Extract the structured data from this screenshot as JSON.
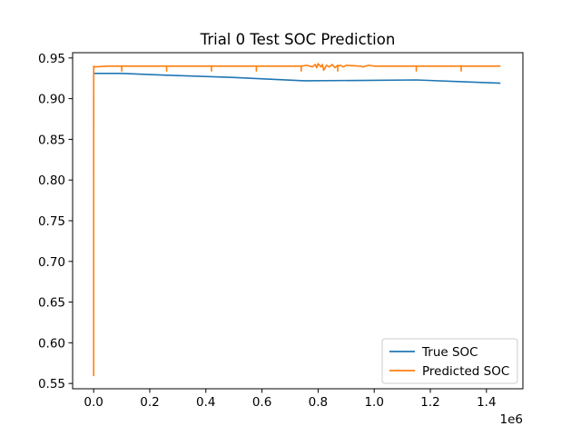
{
  "chart_data": {
    "type": "line",
    "title": "Trial 0 Test SOC Prediction",
    "xlabel": "",
    "ylabel": "",
    "x_offset_label": "1e6",
    "xlim": [
      -75000,
      1530000
    ],
    "ylim": [
      0.5435,
      0.9565
    ],
    "x_ticks": [
      0,
      200000,
      400000,
      600000,
      800000,
      1000000,
      1200000,
      1400000
    ],
    "x_tick_labels": [
      "0.0",
      "0.2",
      "0.4",
      "0.6",
      "0.8",
      "1.0",
      "1.2",
      "1.4"
    ],
    "y_ticks": [
      0.55,
      0.6,
      0.65,
      0.7,
      0.75,
      0.8,
      0.85,
      0.9,
      0.95
    ],
    "y_tick_labels": [
      "0.55",
      "0.60",
      "0.65",
      "0.70",
      "0.75",
      "0.80",
      "0.85",
      "0.90",
      "0.95"
    ],
    "grid": false,
    "legend_position": "lower-right",
    "series": [
      {
        "name": "True SOC",
        "color": "#1f77b4",
        "x": [
          0,
          100000,
          250000,
          500000,
          750000,
          1000000,
          1150000,
          1300000,
          1450000
        ],
        "y": [
          0.931,
          0.931,
          0.929,
          0.926,
          0.922,
          0.9225,
          0.923,
          0.921,
          0.919
        ]
      },
      {
        "name": "Predicted SOC",
        "color": "#ff7f0e",
        "x": [
          0,
          100,
          400,
          800,
          1500,
          50000,
          100000,
          100000,
          100000,
          150000,
          200000,
          260000,
          260000,
          260000,
          300000,
          350000,
          420000,
          420000,
          420000,
          500000,
          580000,
          580000,
          580000,
          650000,
          740000,
          740000,
          740000,
          760000,
          780000,
          790000,
          795000,
          800000,
          810000,
          815000,
          820000,
          830000,
          840000,
          850000,
          860000,
          870000,
          870000,
          870000,
          880000,
          890000,
          900000,
          950000,
          960000,
          980000,
          1000000,
          1100000,
          1150000,
          1150000,
          1150000,
          1200000,
          1300000,
          1310000,
          1310000,
          1310000,
          1400000,
          1450000
        ],
        "y": [
          0.559,
          0.94,
          0.939,
          0.94,
          0.939,
          0.94,
          0.94,
          0.934,
          0.94,
          0.94,
          0.94,
          0.94,
          0.934,
          0.94,
          0.94,
          0.94,
          0.94,
          0.934,
          0.94,
          0.94,
          0.94,
          0.934,
          0.94,
          0.94,
          0.94,
          0.934,
          0.94,
          0.941,
          0.939,
          0.942,
          0.938,
          0.943,
          0.939,
          0.942,
          0.935,
          0.941,
          0.939,
          0.942,
          0.938,
          0.941,
          0.934,
          0.94,
          0.941,
          0.939,
          0.941,
          0.94,
          0.939,
          0.941,
          0.94,
          0.94,
          0.94,
          0.934,
          0.94,
          0.94,
          0.94,
          0.94,
          0.934,
          0.94,
          0.94,
          0.94
        ]
      }
    ]
  }
}
